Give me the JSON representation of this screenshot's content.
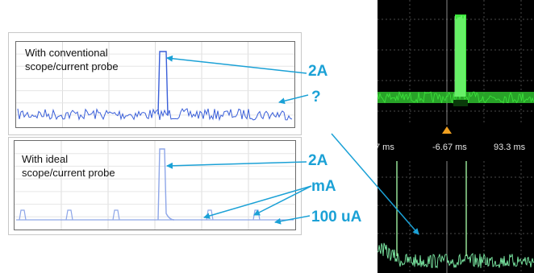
{
  "panels": [
    {
      "label_line1": "With conventional",
      "label_line2": "scope/current probe"
    },
    {
      "label_line1": "With ideal",
      "label_line2": "scope/current probe"
    }
  ],
  "callouts": [
    "2A",
    "?",
    "2A",
    "mA",
    "100 uA"
  ],
  "scope": {
    "time_labels": [
      "7 ms",
      "-6.67 ms",
      "93.3 ms"
    ]
  },
  "colors": {
    "callout": "#1ba1d6",
    "trace_conventional": "#3a5fd9",
    "trace_ideal": "#8ea6e8",
    "scope_green": "#3ee63e",
    "scope_green_light": "#7ff0a8",
    "trigger_marker": "#f0a020"
  },
  "icons": {
    "trigger_marker": "trigger-triangle-icon"
  }
}
